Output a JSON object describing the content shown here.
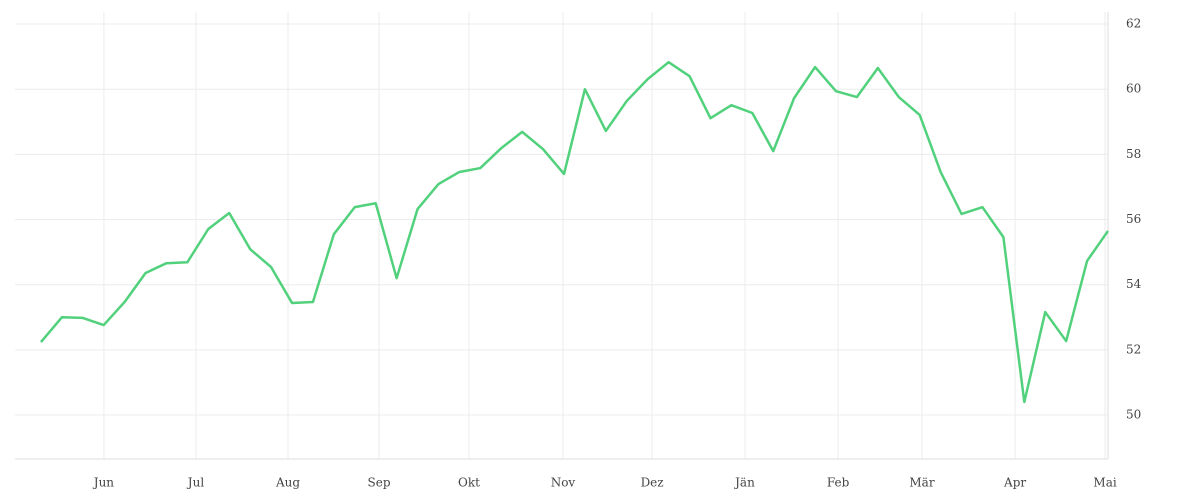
{
  "chart_data": {
    "type": "line",
    "x": [
      0,
      1,
      2,
      3,
      4,
      5,
      6,
      7,
      8,
      9,
      10,
      11,
      12,
      13,
      14,
      15,
      16,
      17,
      18,
      19,
      20,
      21,
      22,
      23,
      24,
      25,
      26,
      27,
      28,
      29,
      30,
      31,
      32,
      33,
      34,
      35,
      36,
      37,
      38,
      39,
      40,
      41,
      42,
      43,
      44,
      45,
      46,
      47,
      48,
      49,
      50,
      51
    ],
    "series": [
      {
        "color": "#52d17c",
        "values": [
          52.24,
          53.0,
          52.98,
          52.76,
          53.47,
          54.36,
          54.66,
          54.69,
          55.71,
          56.2,
          55.09,
          54.54,
          53.44,
          53.47,
          55.55,
          56.38,
          56.5,
          54.2,
          56.32,
          57.09,
          57.46,
          57.58,
          58.19,
          58.69,
          58.16,
          57.4,
          60.0,
          58.72,
          59.64,
          60.31,
          60.83,
          60.4,
          59.11,
          59.51,
          59.27,
          58.1,
          59.73,
          60.68,
          59.94,
          59.76,
          60.65,
          59.76,
          59.21,
          57.46,
          56.17,
          56.38,
          55.46,
          50.4,
          53.16,
          52.27,
          54.73,
          55.65
        ]
      }
    ],
    "xlim": [
      -1.24,
      51.0
    ],
    "xticks": [
      {
        "value": 3.01,
        "label": "Jun"
      },
      {
        "value": 7.41,
        "label": "Jul"
      },
      {
        "value": 11.81,
        "label": "Aug"
      },
      {
        "value": 16.16,
        "label": "Sep"
      },
      {
        "value": 20.46,
        "label": "Okt"
      },
      {
        "value": 24.95,
        "label": "Nov"
      },
      {
        "value": 29.21,
        "label": "Dez"
      },
      {
        "value": 33.65,
        "label": "Jän"
      },
      {
        "value": 38.1,
        "label": "Feb"
      },
      {
        "value": 42.11,
        "label": "Mär"
      },
      {
        "value": 46.56,
        "label": "Apr"
      },
      {
        "value": 50.86,
        "label": "Mai"
      }
    ],
    "ylim": [
      48.65,
      62.37
    ],
    "yticks": [
      50,
      52,
      54,
      56,
      58,
      60,
      62
    ],
    "grid": true
  }
}
